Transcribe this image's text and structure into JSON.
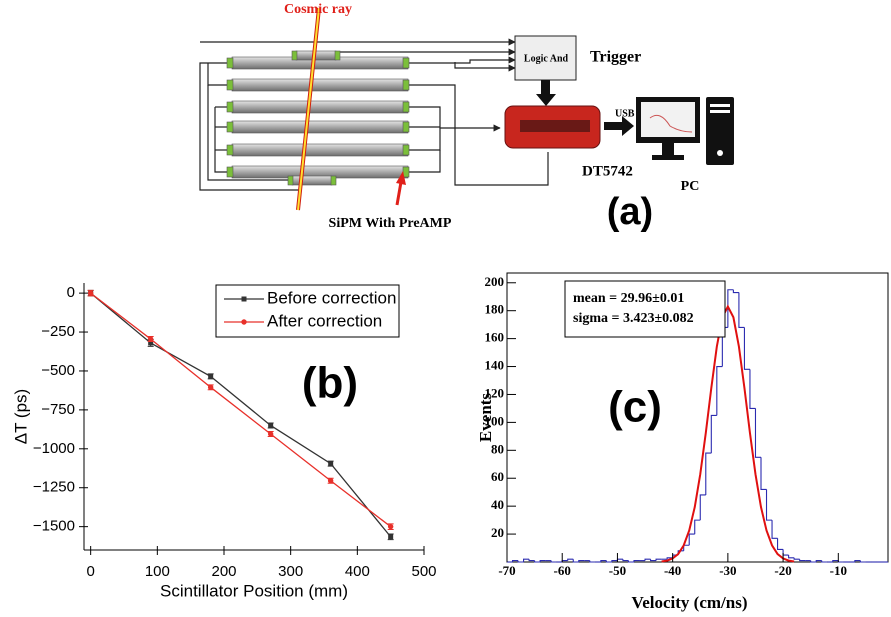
{
  "diagram": {
    "cosmic_ray": "Cosmic ray",
    "logic": "Logic And",
    "trigger": "Trigger",
    "usb": "USB",
    "digitizer": "DT5742",
    "pc": "PC",
    "sipm": "SiPM With PreAMP",
    "panel": "(a)"
  },
  "chart_data": [
    {
      "type": "line",
      "panel_label": "(b)",
      "xlabel": "Scintillator Position (mm)",
      "ylabel": "ΔT (ps)",
      "x": [
        0,
        90,
        180,
        270,
        360,
        450
      ],
      "series": [
        {
          "name": "Before correction",
          "color": "#333333",
          "marker": "square",
          "values": [
            0,
            -320,
            -535,
            -850,
            -1095,
            -1565
          ],
          "errors": [
            18,
            22,
            16,
            16,
            16,
            18
          ]
        },
        {
          "name": "After correction",
          "color": "#e8302a",
          "marker": "circle",
          "values": [
            0,
            -295,
            -605,
            -905,
            -1205,
            -1500
          ],
          "errors": [
            18,
            16,
            16,
            16,
            16,
            18
          ]
        }
      ],
      "xlim": [
        -10,
        500
      ],
      "xticks": [
        0,
        100,
        200,
        300,
        400,
        500
      ],
      "ylim": [
        -1650,
        65
      ],
      "yticks": [
        0,
        {
          "value": -250,
          "label": "−250"
        },
        {
          "value": -500,
          "label": "−500"
        },
        {
          "value": -750,
          "label": "−750"
        },
        {
          "value": -1000,
          "label": "−1000"
        },
        {
          "value": -1250,
          "label": "−1250"
        },
        {
          "value": -1500,
          "label": "−1500"
        }
      ],
      "legend": "upper right"
    },
    {
      "type": "histogram",
      "panel_label": "(c)",
      "xlabel": "Velocity (cm/ns)",
      "ylabel": "Events",
      "bins": [
        -70,
        -69,
        -68,
        -67,
        -66,
        -65,
        -64,
        -63,
        -62,
        -61,
        -60,
        -59,
        -58,
        -57,
        -56,
        -55,
        -54,
        -53,
        -52,
        -51,
        -50,
        -49,
        -48,
        -47,
        -46,
        -45,
        -44,
        -43,
        -42,
        -41,
        -40,
        -39,
        -38,
        -37,
        -36,
        -35,
        -34,
        -33,
        -32,
        -31,
        -30,
        -29,
        -28,
        -27,
        -26,
        -25,
        -24,
        -23,
        -22,
        -21,
        -20,
        -19,
        -18,
        -17,
        -16,
        -15,
        -14,
        -13,
        -12,
        -11,
        -10,
        -9,
        -8,
        -7,
        -6,
        -5,
        -4,
        -3,
        -2,
        -1
      ],
      "values": [
        0,
        1,
        0,
        2,
        1,
        0,
        1,
        1,
        0,
        0,
        1,
        2,
        0,
        1,
        1,
        0,
        0,
        1,
        0,
        1,
        2,
        1,
        0,
        1,
        1,
        2,
        1,
        2,
        2,
        3,
        5,
        8,
        12,
        20,
        30,
        48,
        78,
        105,
        140,
        168,
        195,
        193,
        168,
        138,
        110,
        75,
        52,
        30,
        17,
        9,
        5,
        3,
        2,
        1,
        1,
        0,
        1,
        0,
        0,
        1,
        0,
        0,
        0,
        1,
        0,
        0,
        0,
        0,
        0
      ],
      "color": "#2b2bb0",
      "fit": {
        "color": "#e01010",
        "x": [
          -42,
          -41,
          -40,
          -39,
          -38,
          -37,
          -36,
          -35,
          -34,
          -33,
          -32,
          -31,
          -30,
          -29,
          -28,
          -27,
          -26,
          -25,
          -24,
          -23,
          -22,
          -21,
          -20,
          -19,
          -18
        ],
        "values": [
          0.4,
          1.0,
          2.6,
          5.7,
          11.9,
          22.6,
          39.3,
          62.9,
          92.4,
          124.6,
          154.3,
          175.3,
          183,
          175.3,
          154.3,
          124.6,
          92.4,
          62.9,
          39.3,
          22.6,
          11.9,
          5.7,
          2.6,
          1.0,
          0.4
        ]
      },
      "stats": [
        "mean = 29.96±0.01",
        "sigma = 3.423±0.082"
      ],
      "xlim": [
        -70,
        -1
      ],
      "xticks": [
        -70,
        -60,
        -50,
        -40,
        -30,
        -20,
        -10
      ],
      "ylim": [
        0,
        207
      ],
      "yticks": [
        20,
        40,
        60,
        80,
        100,
        120,
        140,
        160,
        180,
        200
      ]
    }
  ]
}
